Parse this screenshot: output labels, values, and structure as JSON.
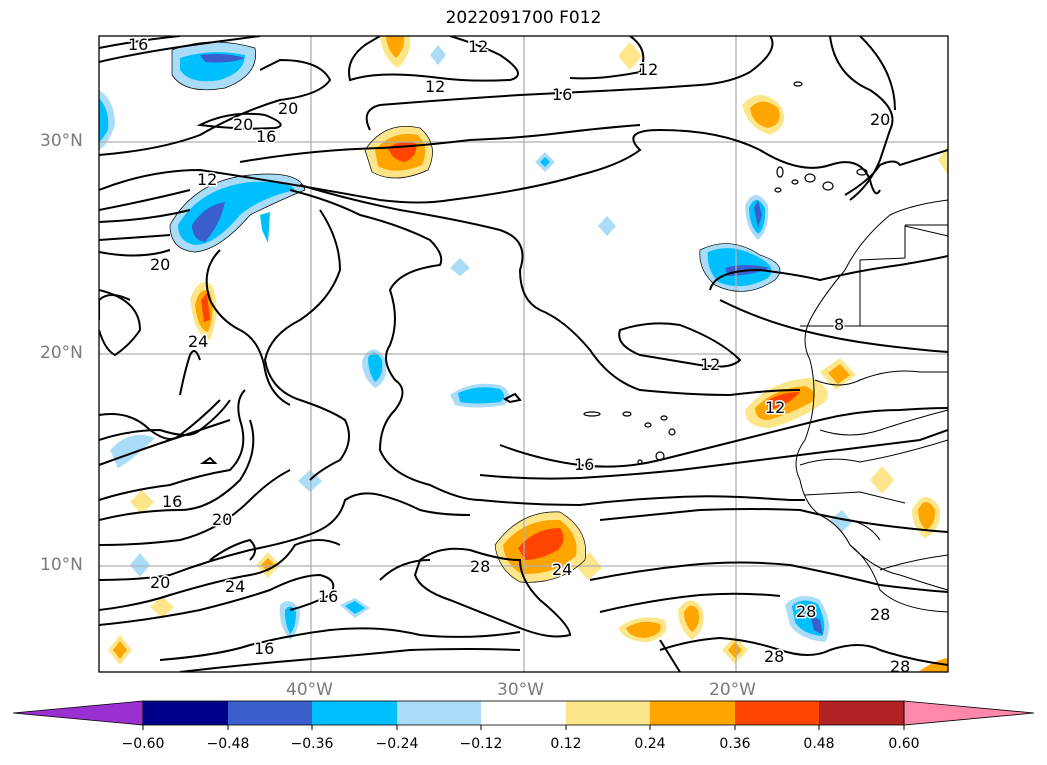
{
  "title": "2022091700 F012",
  "map": {
    "lat_labels": [
      "30°N",
      "20°N",
      "10°N"
    ],
    "lon_labels": [
      "40°W",
      "30°W",
      "20°W"
    ],
    "contour_labels": [
      "16",
      "12",
      "12",
      "16",
      "20",
      "20",
      "16",
      "20",
      "12",
      "20",
      "24",
      "12",
      "12",
      "16",
      "8",
      "12",
      "16",
      "20",
      "28",
      "24",
      "20",
      "24",
      "16",
      "16",
      "28",
      "28",
      "28",
      "28"
    ],
    "grid": true
  },
  "colorbar": {
    "ticks": [
      "−0.60",
      "−0.48",
      "−0.36",
      "−0.24",
      "−0.12",
      "0.12",
      "0.24",
      "0.36",
      "0.48",
      "0.60"
    ],
    "colors": [
      "#9b30d0",
      "#00008b",
      "#3a5fcd",
      "#00bfff",
      "#aadcf7",
      "#ffffff",
      "#fde68a",
      "#ffa500",
      "#ff4500",
      "#b22222",
      "#ff88aa"
    ],
    "extend": "both"
  }
}
